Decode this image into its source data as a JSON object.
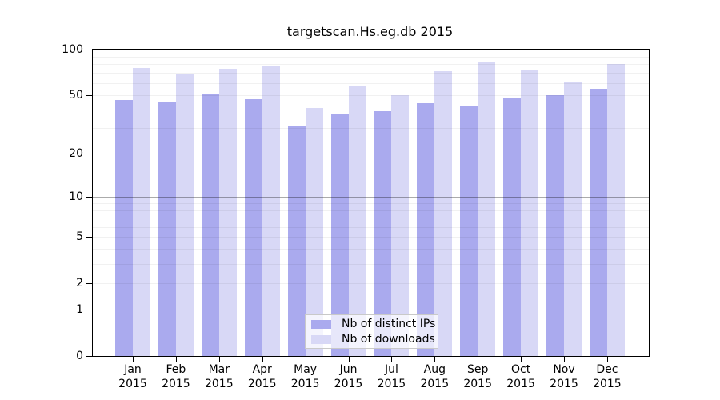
{
  "title": "targetscan.Hs.eg.db 2015",
  "chart_data": {
    "type": "bar",
    "title": "targetscan.Hs.eg.db 2015",
    "categories": [
      "Jan",
      "Feb",
      "Mar",
      "Apr",
      "May",
      "Jun",
      "Jul",
      "Aug",
      "Sep",
      "Oct",
      "Nov",
      "Dec"
    ],
    "x_tick_second_line": "2015",
    "series": [
      {
        "name": "Nb of distinct IPs",
        "color": "#aaaaee",
        "values": [
          46,
          45,
          51,
          47,
          31,
          37,
          39,
          44,
          42,
          48,
          50,
          55
        ]
      },
      {
        "name": "Nb of downloads",
        "color": "#d8d8f6",
        "values": [
          76,
          69,
          75,
          77,
          41,
          57,
          50,
          72,
          82,
          74,
          61,
          80
        ]
      }
    ],
    "ylabel": "",
    "xlabel": "",
    "y_axis": {
      "scale": "log1p",
      "ticks": [
        0,
        1,
        2,
        5,
        10,
        20,
        50,
        100
      ],
      "minor_gridlines": [
        2,
        3,
        4,
        5,
        6,
        7,
        8,
        9,
        20,
        30,
        40,
        50,
        60,
        70,
        80,
        90
      ],
      "major_gridlines": [
        1,
        10
      ],
      "ylim": [
        0,
        100
      ]
    },
    "grid": true,
    "legend_position": "bottom-center"
  },
  "colors": {
    "bar_distinct_ips": "#aaaaee",
    "bar_downloads": "#d8d8f6",
    "axis": "#000000",
    "background": "#ffffff"
  }
}
